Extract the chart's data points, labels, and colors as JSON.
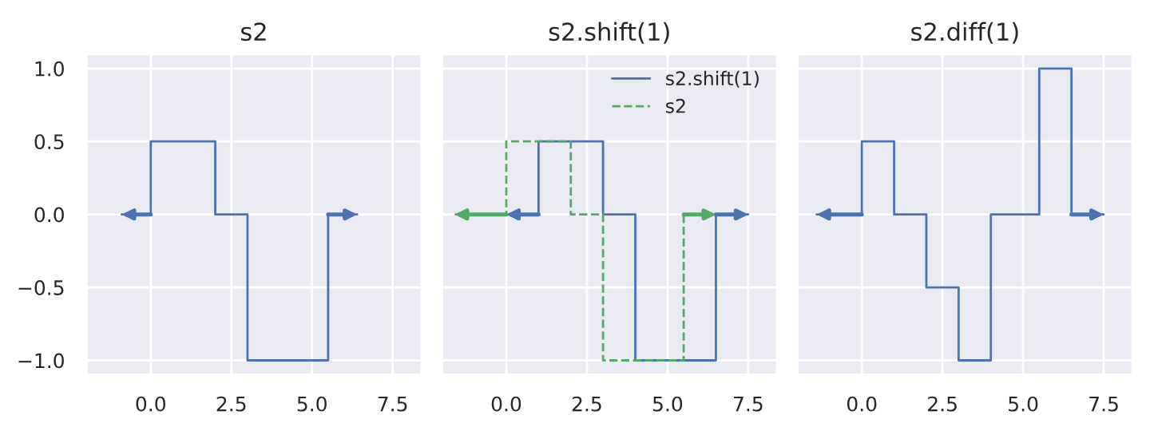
{
  "chart_data": [
    {
      "type": "step",
      "title": "s2",
      "xlim": [
        -2,
        8.4
      ],
      "ylim": [
        -1.1,
        1.1
      ],
      "xticks": [
        {
          "value": 0,
          "label": "0.0"
        },
        {
          "value": 2.5,
          "label": "2.5"
        },
        {
          "value": 5,
          "label": "5.0"
        },
        {
          "value": 7.5,
          "label": "7.5"
        }
      ],
      "yticks": [
        {
          "value": 1,
          "label": "1.0"
        },
        {
          "value": 0.5,
          "label": "0.5"
        },
        {
          "value": 0,
          "label": "0.0"
        },
        {
          "value": -0.5,
          "label": "−0.5"
        },
        {
          "value": -1,
          "label": "−1.0"
        }
      ],
      "grid": true,
      "legend": false,
      "series": [
        {
          "color": "#4c72b0",
          "line_style": "solid",
          "x": [
            -0.9,
            0,
            2,
            3,
            5.5,
            6.4
          ],
          "values": [
            0,
            0.5,
            0,
            -1,
            0,
            0
          ]
        }
      ]
    },
    {
      "type": "step",
      "title": "s2.shift(1)",
      "xlim": [
        -2,
        8.4
      ],
      "ylim": [
        -1.1,
        1.1
      ],
      "xticks": [
        {
          "value": 0,
          "label": "0.0"
        },
        {
          "value": 2.5,
          "label": "2.5"
        },
        {
          "value": 5,
          "label": "5.0"
        },
        {
          "value": 7.5,
          "label": "7.5"
        }
      ],
      "yticks": [
        {
          "value": 1,
          "label": null
        },
        {
          "value": 0.5,
          "label": null
        },
        {
          "value": 0,
          "label": null
        },
        {
          "value": -0.5,
          "label": null
        },
        {
          "value": -1,
          "label": null
        }
      ],
      "tick_labels": "x",
      "grid": true,
      "legend": "top right",
      "series": [
        {
          "name": "s2.shift(1)",
          "color": "#4c72b0",
          "line_style": "solid",
          "x": [
            0,
            1,
            3,
            4,
            6.5,
            7.5
          ],
          "values": [
            0,
            0.5,
            0,
            -1,
            0,
            0
          ]
        },
        {
          "name": "s2",
          "color": "#55a868",
          "line_style": "dashed",
          "x": [
            -1.6,
            0,
            2,
            3,
            5.5,
            6.5
          ],
          "values": [
            0,
            0.5,
            0,
            -1,
            0,
            0
          ]
        }
      ]
    },
    {
      "type": "step",
      "title": "s2.diff(1)",
      "xlim": [
        -2,
        8.4
      ],
      "ylim": [
        -1.1,
        1.1
      ],
      "xticks": [
        {
          "value": 0,
          "label": "0.0"
        },
        {
          "value": 2.5,
          "label": "2.5"
        },
        {
          "value": 5,
          "label": "5.0"
        },
        {
          "value": 7.5,
          "label": "7.5"
        }
      ],
      "yticks": [
        {
          "value": 1,
          "label": null
        },
        {
          "value": 0.5,
          "label": null
        },
        {
          "value": 0,
          "label": null
        },
        {
          "value": -0.5,
          "label": null
        },
        {
          "value": -1,
          "label": null
        }
      ],
      "tick_labels": "x",
      "grid": true,
      "legend": false,
      "series": [
        {
          "color": "#4c72b0",
          "line_style": "solid",
          "x": [
            -1.4,
            0,
            1,
            2,
            3,
            4,
            5.5,
            6.5,
            7.5
          ],
          "values": [
            0,
            0.5,
            0,
            -0.5,
            -1,
            0,
            1,
            0,
            0
          ]
        }
      ]
    }
  ]
}
